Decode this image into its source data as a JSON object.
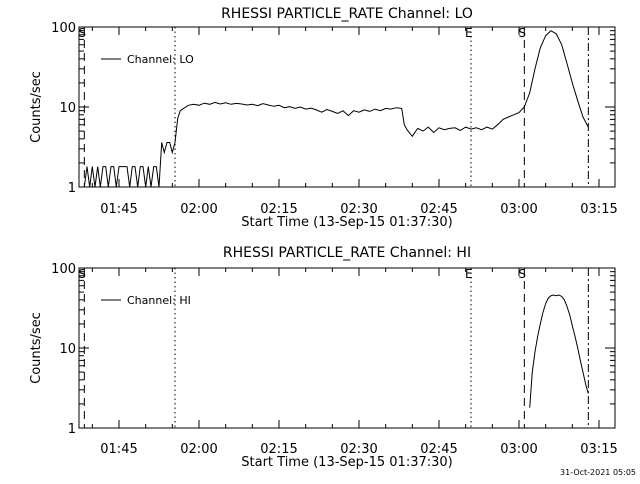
{
  "chart_data": [
    {
      "type": "line",
      "title": "RHESSI PARTICLE_RATE Channel: LO",
      "xlabel": "Start Time (13-Sep-15 01:37:30)",
      "ylabel": "Counts/sec",
      "yscale": "log",
      "xlim": [
        "01:37:30",
        "03:18:00"
      ],
      "ylim": [
        1,
        100
      ],
      "x_ticks": [
        "01:45",
        "02:00",
        "02:15",
        "02:30",
        "02:45",
        "03:00",
        "03:15"
      ],
      "y_ticks": [
        "1",
        "10",
        "100"
      ],
      "legend": {
        "label": "Channel: LO",
        "placement": "top-left"
      },
      "markers": [
        {
          "label": "S",
          "time": "01:38:30",
          "style": "dashed"
        },
        {
          "label": "",
          "time": "01:55:30",
          "style": "dotted"
        },
        {
          "label": "E",
          "time": "02:51:00",
          "style": "dotted"
        },
        {
          "label": "S",
          "time": "03:01:00",
          "style": "dashed"
        },
        {
          "label": "",
          "time": "03:13:00",
          "style": "dashdot"
        }
      ],
      "series": [
        {
          "name": "Channel: LO",
          "x": [
            "01:38:30",
            "01:39:00",
            "01:39:30",
            "01:40:00",
            "01:40:30",
            "01:41:00",
            "01:41:30",
            "01:42:00",
            "01:42:30",
            "01:43:00",
            "01:43:30",
            "01:44:00",
            "01:44:30",
            "01:45:00",
            "01:45:30",
            "01:46:00",
            "01:46:30",
            "01:47:00",
            "01:47:30",
            "01:48:00",
            "01:48:30",
            "01:49:00",
            "01:49:30",
            "01:50:00",
            "01:50:30",
            "01:51:00",
            "01:51:30",
            "01:52:00",
            "01:52:30",
            "01:53:00",
            "01:53:30",
            "01:54:00",
            "01:54:30",
            "01:55:00",
            "01:55:30",
            "01:56:00",
            "01:56:30",
            "01:57:00",
            "01:58:00",
            "01:59:00",
            "02:00:00",
            "02:01:00",
            "02:02:00",
            "02:03:00",
            "02:04:00",
            "02:05:00",
            "02:06:00",
            "02:07:00",
            "02:08:00",
            "02:09:00",
            "02:10:00",
            "02:11:00",
            "02:12:00",
            "02:13:00",
            "02:14:00",
            "02:15:00",
            "02:16:00",
            "02:17:00",
            "02:18:00",
            "02:19:00",
            "02:20:00",
            "02:21:00",
            "02:22:00",
            "02:23:00",
            "02:24:00",
            "02:25:00",
            "02:26:00",
            "02:27:00",
            "02:28:00",
            "02:29:00",
            "02:30:00",
            "02:31:00",
            "02:32:00",
            "02:33:00",
            "02:34:00",
            "02:35:00",
            "02:36:00",
            "02:37:00",
            "02:38:00",
            "02:38:30",
            "02:39:00",
            "02:40:00",
            "02:41:00",
            "02:42:00",
            "02:43:00",
            "02:44:00",
            "02:45:00",
            "02:46:00",
            "02:47:00",
            "02:48:00",
            "02:49:00",
            "02:50:00",
            "02:51:00",
            "02:52:00",
            "02:53:00",
            "02:54:00",
            "02:55:00",
            "02:56:00",
            "02:57:00",
            "02:58:00",
            "02:59:00",
            "03:00:00",
            "03:01:00",
            "03:02:00",
            "03:03:00",
            "03:04:00",
            "03:05:00",
            "03:06:00",
            "03:07:00",
            "03:08:00",
            "03:09:00",
            "03:10:00",
            "03:11:00",
            "03:12:00",
            "03:13:00"
          ],
          "values": [
            1,
            1.8,
            1,
            1.8,
            1,
            1.8,
            1,
            1.8,
            1.8,
            1,
            1.8,
            1.8,
            1,
            1.8,
            1.8,
            1.8,
            1.8,
            1,
            1.8,
            1.8,
            1,
            1.8,
            1.8,
            1,
            1.8,
            1,
            1.8,
            1.8,
            1,
            3.6,
            2.7,
            3.6,
            3.6,
            2.7,
            3.6,
            7.2,
            9.0,
            9.5,
            10.5,
            10.8,
            10.5,
            11.2,
            10.8,
            11.4,
            10.9,
            11.3,
            10.8,
            11.1,
            10.9,
            10.6,
            10.8,
            10.4,
            11.0,
            10.6,
            10.2,
            10.5,
            9.8,
            10.1,
            9.6,
            10.0,
            9.4,
            9.7,
            9.2,
            8.6,
            9.3,
            8.8,
            8.3,
            9.0,
            7.8,
            9.0,
            8.6,
            9.2,
            8.8,
            9.4,
            9.0,
            9.6,
            9.4,
            9.8,
            9.6,
            6.0,
            5.2,
            4.3,
            5.4,
            5.0,
            5.6,
            4.8,
            5.5,
            5.2,
            5.4,
            5.5,
            5.1,
            5.6,
            5.3,
            5.5,
            5.2,
            5.6,
            5.3,
            6.0,
            7.0,
            7.5,
            8.0,
            8.5,
            10.0,
            15.0,
            30.0,
            55.0,
            78.0,
            90.0,
            82.0,
            60.0,
            35.0,
            20.0,
            12.0,
            7.5,
            5.6
          ]
        }
      ]
    },
    {
      "type": "line",
      "title": "RHESSI PARTICLE_RATE Channel: HI",
      "xlabel": "Start Time (13-Sep-15 01:37:30)",
      "ylabel": "Counts/sec",
      "yscale": "log",
      "xlim": [
        "01:37:30",
        "03:18:00"
      ],
      "ylim": [
        1,
        100
      ],
      "x_ticks": [
        "01:45",
        "02:00",
        "02:15",
        "02:30",
        "02:45",
        "03:00",
        "03:15"
      ],
      "y_ticks": [
        "1",
        "10",
        "100"
      ],
      "legend": {
        "label": "Channel: HI",
        "placement": "top-left"
      },
      "markers": [
        {
          "label": "S",
          "time": "01:38:30",
          "style": "dashed"
        },
        {
          "label": "",
          "time": "01:55:30",
          "style": "dotted"
        },
        {
          "label": "E",
          "time": "02:51:00",
          "style": "dotted"
        },
        {
          "label": "S",
          "time": "03:01:00",
          "style": "dashed"
        },
        {
          "label": "",
          "time": "03:13:00",
          "style": "dashdot"
        }
      ],
      "series": [
        {
          "name": "Channel: HI",
          "x": [
            "03:02:00",
            "03:02:30",
            "03:03:00",
            "03:03:30",
            "03:04:00",
            "03:04:30",
            "03:05:00",
            "03:05:30",
            "03:06:00",
            "03:06:30",
            "03:07:00",
            "03:07:30",
            "03:08:00",
            "03:08:30",
            "03:09:00",
            "03:09:30",
            "03:10:00",
            "03:10:30",
            "03:11:00",
            "03:11:30",
            "03:12:00",
            "03:12:30",
            "03:13:00"
          ],
          "values": [
            1.8,
            5.0,
            9.0,
            14.0,
            20.0,
            28.0,
            36.0,
            42.0,
            45.0,
            46.0,
            45.0,
            46.0,
            44.0,
            40.0,
            33.0,
            26.0,
            19.0,
            14.0,
            10.0,
            7.0,
            5.0,
            3.5,
            2.7
          ]
        }
      ]
    }
  ],
  "footer": {
    "date_stamp": "31-Oct-2021 05:05"
  }
}
